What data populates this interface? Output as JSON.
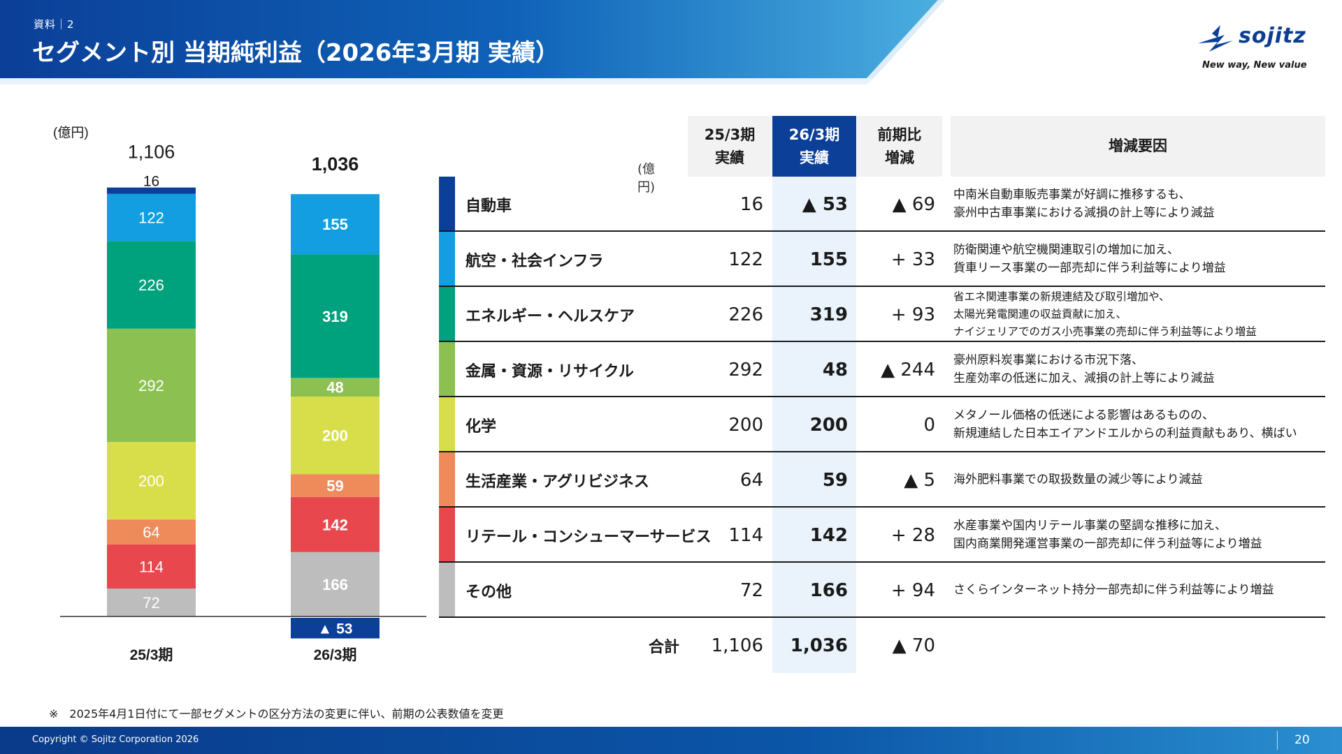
{
  "header": {
    "doc_label": "資料｜2",
    "title": "セグメント別 当期純利益（2026年3月期 実績）",
    "logo_text": "sojitz",
    "logo_tagline": "New way, New value"
  },
  "colors": {
    "header_dark": "#0b3f98",
    "header_light": "#4aaee0",
    "current_column": "#0b3f98",
    "current_column_bg": "#eaf3fb"
  },
  "chart_data": {
    "type": "bar",
    "stacked": true,
    "unit_label": "(億円)",
    "categories": [
      "25/3期",
      "26/3期"
    ],
    "totals": [
      "1,106",
      "1,036"
    ],
    "series": [
      {
        "name": "その他",
        "color": "#bdbdbd",
        "values": [
          72,
          166
        ]
      },
      {
        "name": "リテール・コンシューマーサービス",
        "color": "#e8474e",
        "values": [
          114,
          142
        ]
      },
      {
        "name": "生活産業・アグリビジネス",
        "color": "#ef8a5a",
        "values": [
          64,
          59
        ]
      },
      {
        "name": "化学",
        "color": "#d7de4a",
        "values": [
          200,
          200
        ]
      },
      {
        "name": "金属・資源・リサイクル",
        "color": "#8cc152",
        "values": [
          292,
          48
        ]
      },
      {
        "name": "エネルギー・ヘルスケア",
        "color": "#00a27d",
        "values": [
          226,
          319
        ]
      },
      {
        "name": "航空・社会インフラ",
        "color": "#129ee0",
        "values": [
          122,
          155
        ]
      },
      {
        "name": "自動車",
        "color": "#0b3f98",
        "values": [
          16,
          -53
        ]
      }
    ],
    "negative_label": "▲ 53"
  },
  "table": {
    "headers": {
      "prev": "25/3期\n実績",
      "curr": "26/3期\n実績",
      "diff": "前期比\n増減",
      "reason": "増減要因"
    },
    "unit": "(億円)",
    "rows": [
      {
        "name": "自動車",
        "prev": "16",
        "curr": "▲ 53",
        "diff": "▲ 69",
        "color": "#0b3f98",
        "reason": "中南米自動車販売事業が好調に推移するも、\n豪州中古車事業における減損の計上等により減益"
      },
      {
        "name": "航空・社会インフラ",
        "prev": "122",
        "curr": "155",
        "diff": "+ 33",
        "color": "#129ee0",
        "reason": "防衛関連や航空機関連取引の増加に加え、\n貨車リース事業の一部売却に伴う利益等により増益"
      },
      {
        "name": "エネルギー・ヘルスケア",
        "prev": "226",
        "curr": "319",
        "diff": "+ 93",
        "color": "#00a27d",
        "reason": "省エネ関連事業の新規連結及び取引増加や、\n太陽光発電関連の収益貢献に加え、\nナイジェリアでのガス小売事業の売却に伴う利益等により増益"
      },
      {
        "name": "金属・資源・リサイクル",
        "prev": "292",
        "curr": "48",
        "diff": "▲ 244",
        "color": "#8cc152",
        "reason": "豪州原料炭事業における市況下落、\n生産効率の低迷に加え、減損の計上等により減益"
      },
      {
        "name": "化学",
        "prev": "200",
        "curr": "200",
        "diff": "0",
        "color": "#d7de4a",
        "reason": "メタノール価格の低迷による影響はあるものの、\n新規連結した日本エイアンドエルからの利益貢献もあり、横ばい"
      },
      {
        "name": "生活産業・アグリビジネス",
        "prev": "64",
        "curr": "59",
        "diff": "▲ 5",
        "color": "#ef8a5a",
        "reason": "海外肥料事業での取扱数量の減少等により減益"
      },
      {
        "name": "リテール・コンシューマーサービス",
        "prev": "114",
        "curr": "142",
        "diff": "+ 28",
        "color": "#e8474e",
        "reason": "水産事業や国内リテール事業の堅調な推移に加え、\n国内商業開発運営事業の一部売却に伴う利益等により増益"
      },
      {
        "name": "その他",
        "prev": "72",
        "curr": "166",
        "diff": "+ 94",
        "color": "#bdbdbd",
        "reason": "さくらインターネット持分一部売却に伴う利益等により増益"
      }
    ],
    "total": {
      "label": "合計",
      "prev": "1,106",
      "curr": "1,036",
      "diff": "▲ 70"
    }
  },
  "footnote": "※　2025年4月1日付にて一部セグメントの区分方法の変更に伴い、前期の公表数値を変更",
  "footer": {
    "copyright": "Copyright © Sojitz Corporation 2026",
    "page_number": "20"
  }
}
